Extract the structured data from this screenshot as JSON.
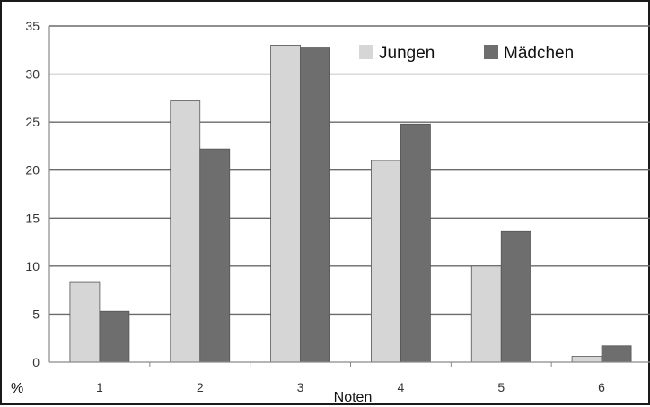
{
  "chart_data": {
    "type": "bar",
    "categories": [
      "1",
      "2",
      "3",
      "4",
      "5",
      "6"
    ],
    "series": [
      {
        "name": "Jungen",
        "values": [
          8.3,
          27.2,
          33.0,
          21.0,
          10.0,
          0.6
        ],
        "color": "#d6d6d6"
      },
      {
        "name": "Mädchen",
        "values": [
          5.3,
          22.2,
          32.8,
          24.8,
          13.6,
          1.7
        ],
        "color": "#6e6e6e"
      }
    ],
    "xlabel": "Noten",
    "ylabel": "%",
    "ylim": [
      0,
      35
    ],
    "yticks": [
      "0",
      "5",
      "10",
      "15",
      "20",
      "25",
      "30",
      "35"
    ],
    "grid": true,
    "legend_position": "top-right"
  }
}
